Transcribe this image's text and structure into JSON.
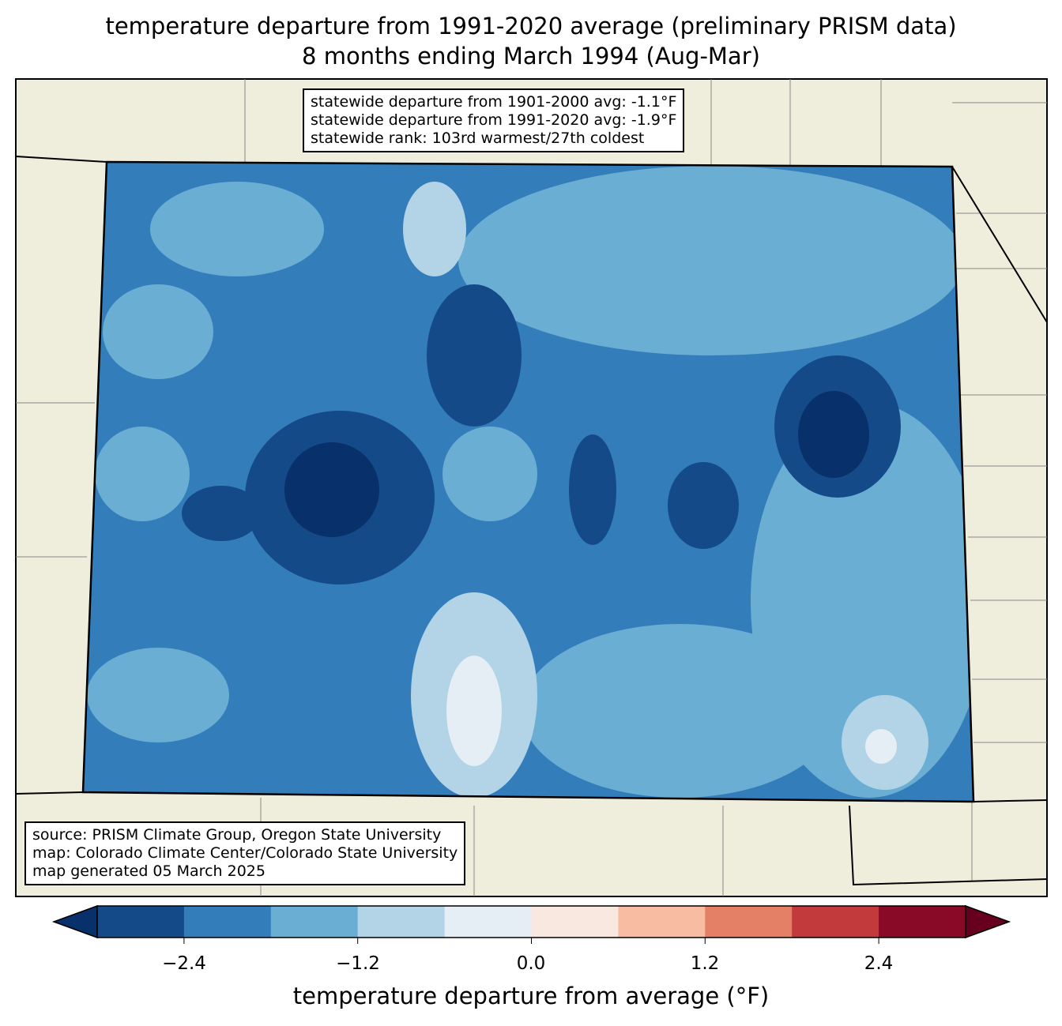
{
  "title": {
    "line1": "temperature departure from 1991-2020 average (preliminary PRISM data)",
    "line2": "8 months ending March 1994 (Aug-Mar)"
  },
  "stats": {
    "line1": "statewide departure from 1901-2000 avg: -1.1°F",
    "line2": "statewide departure from 1991-2020 avg: -1.9°F",
    "line3": "statewide rank: 103rd warmest/27th coldest"
  },
  "source": {
    "line1": "source: PRISM Climate Group, Oregon State University",
    "line2": "map: Colorado Climate Center/Colorado State University",
    "line3": "map generated 05 March 2025"
  },
  "colorbar": {
    "label": "temperature departure from average (°F)",
    "ticks": [
      "−2.4",
      "−1.2",
      "0.0",
      "1.2",
      "2.4"
    ],
    "levels": [
      -3.0,
      -2.4,
      -1.8,
      -1.2,
      -0.6,
      0.0,
      0.6,
      1.2,
      1.8,
      2.4,
      3.0
    ],
    "colors": [
      "#154a89",
      "#327dba",
      "#6aaed4",
      "#b2d4e6",
      "#e5eef4",
      "#f9e8df",
      "#f8bca2",
      "#e48066",
      "#c23a3b",
      "#880a26"
    ],
    "under_color": "#08306b",
    "over_color": "#67001f"
  }
}
